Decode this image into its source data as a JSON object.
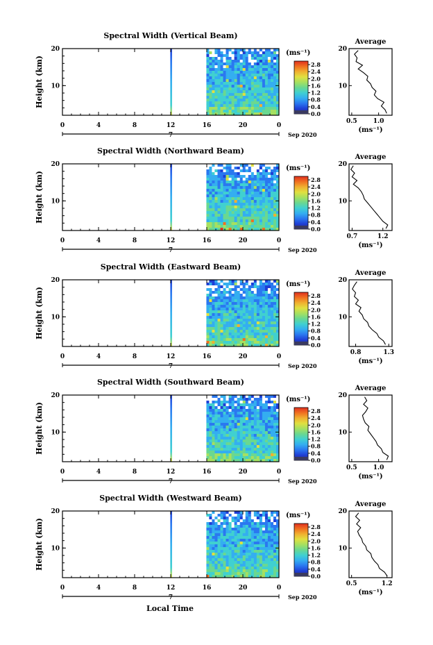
{
  "chart_data": {
    "type": "heatmap",
    "x_axis_label": "Local Time",
    "x_ticks": [
      "0",
      "4",
      "8",
      "12",
      "16",
      "20",
      "0"
    ],
    "x_range": [
      0,
      24
    ],
    "y_axis_label": "Height (km)",
    "y_ticks": [
      "20",
      "10"
    ],
    "y_range": [
      2,
      20
    ],
    "date_marker": "7",
    "date_label": "Sep 2020",
    "colorbar_unit": "(ms⁻¹)",
    "colorbar_ticks": [
      "2.8",
      "2.4",
      "2.0",
      "1.6",
      "1.2",
      "0.8",
      "0.4",
      "0.0"
    ],
    "colorbar_range": [
      0,
      3.0
    ],
    "colorscale": [
      "#2b2b8a",
      "#1f3fd6",
      "#2a78f0",
      "#34aef0",
      "#40d0d0",
      "#6ad890",
      "#a6e060",
      "#e0e040",
      "#f0b030",
      "#f07020",
      "#e03020"
    ],
    "average_title": "Average",
    "average_unit": "(ms⁻¹)",
    "data_coverage": [
      {
        "from": 11.95,
        "to": 12.15,
        "kind": "narrow_band"
      },
      {
        "from": 15.95,
        "to": 24.0,
        "kind": "main_block"
      }
    ],
    "panels": [
      {
        "title": "Spectral Width (Vertical Beam)",
        "avg_xticks": [
          "0.5",
          "1.0"
        ],
        "avg_xrange": [
          0.45,
          1.25
        ],
        "avg_height_km": [
          2.5,
          3.5,
          4.5,
          5.5,
          6.5,
          7.5,
          8.5,
          9.5,
          10.5,
          11.5,
          12.5,
          13.5,
          14.5,
          15.5,
          16.5,
          17.5,
          18.5,
          19.5
        ],
        "avg_values": [
          1.15,
          1.12,
          1.05,
          1.1,
          0.98,
          0.92,
          0.95,
          0.88,
          0.85,
          0.78,
          0.8,
          0.72,
          0.62,
          0.7,
          0.58,
          0.6,
          0.55,
          0.62
        ]
      },
      {
        "title": "Spectral Width (Northward Beam)",
        "avg_xticks": [
          "0.7",
          "1.2"
        ],
        "avg_xrange": [
          0.65,
          1.35
        ],
        "avg_height_km": [
          2.5,
          3.5,
          4.5,
          5.5,
          6.5,
          7.5,
          8.5,
          9.5,
          10.5,
          11.5,
          12.5,
          13.5,
          14.5,
          15.5,
          16.5,
          17.5,
          18.5,
          19.5
        ],
        "avg_values": [
          1.25,
          1.28,
          1.2,
          1.15,
          1.1,
          1.05,
          1.0,
          0.95,
          0.9,
          0.88,
          0.85,
          0.8,
          0.72,
          0.78,
          0.7,
          0.74,
          0.68,
          0.72
        ]
      },
      {
        "title": "Spectral Width (Eastward Beam)",
        "avg_xticks": [
          "0.8",
          "1.3"
        ],
        "avg_xrange": [
          0.7,
          1.35
        ],
        "avg_height_km": [
          2.5,
          3.5,
          4.5,
          5.5,
          6.5,
          7.5,
          8.5,
          9.5,
          10.5,
          11.5,
          12.5,
          13.5,
          14.5,
          15.5,
          16.5,
          17.5,
          18.5,
          19.5
        ],
        "avg_values": [
          1.25,
          1.22,
          1.15,
          1.12,
          1.05,
          1.0,
          0.98,
          0.92,
          0.9,
          0.85,
          0.88,
          0.8,
          0.84,
          0.78,
          0.8,
          0.75,
          0.78,
          0.82
        ]
      },
      {
        "title": "Spectral Width (Southward Beam)",
        "avg_xticks": [
          "0.5",
          "1.0"
        ],
        "avg_xrange": [
          0.45,
          1.25
        ],
        "avg_height_km": [
          2.5,
          3.5,
          4.5,
          5.5,
          6.5,
          7.5,
          8.5,
          9.5,
          10.5,
          11.5,
          12.5,
          13.5,
          14.5,
          15.5,
          16.5,
          17.5,
          18.5,
          19.5
        ],
        "avg_values": [
          1.15,
          1.18,
          1.08,
          1.05,
          0.98,
          0.95,
          0.9,
          0.85,
          0.8,
          0.82,
          0.75,
          0.72,
          0.7,
          0.76,
          0.8,
          0.72,
          0.78,
          0.74
        ]
      },
      {
        "title": "Spectral Width (Westward Beam)",
        "avg_xticks": [
          "0.5",
          "1.2"
        ],
        "avg_xrange": [
          0.45,
          1.3
        ],
        "avg_height_km": [
          2.5,
          3.5,
          4.5,
          5.5,
          6.5,
          7.5,
          8.5,
          9.5,
          10.5,
          11.5,
          12.5,
          13.5,
          14.5,
          15.5,
          16.5,
          17.5,
          18.5,
          19.5
        ],
        "avg_values": [
          1.2,
          1.15,
          1.05,
          1.02,
          0.95,
          0.9,
          0.88,
          0.8,
          0.78,
          0.72,
          0.7,
          0.65,
          0.62,
          0.68,
          0.6,
          0.66,
          0.58,
          0.64
        ]
      }
    ]
  }
}
